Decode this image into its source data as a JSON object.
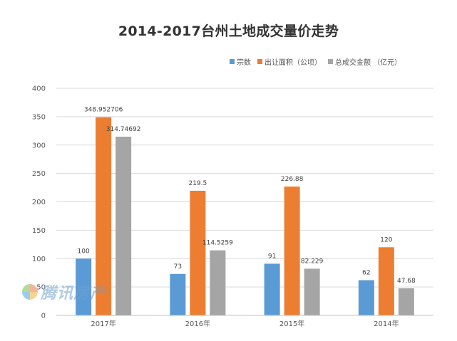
{
  "chart_data": {
    "type": "bar",
    "title": "2014-2017台州土地成交量价走势",
    "categories": [
      "2017年",
      "2016年",
      "2015年",
      "2014年"
    ],
    "series": [
      {
        "name": "宗数",
        "color": "#5b9bd5",
        "values": [
          100,
          73,
          91,
          62
        ],
        "labels": [
          "100",
          "73",
          "91",
          "62"
        ]
      },
      {
        "name": "出让面积（公顷）",
        "color": "#ed7d31",
        "values": [
          348.952706,
          219.5,
          226.88,
          120
        ],
        "labels": [
          "348.952706",
          "219.5",
          "226.88",
          "120"
        ]
      },
      {
        "name": "总成交金额 （亿元）",
        "color": "#a5a5a5",
        "values": [
          314.74692,
          114.5259,
          82.229,
          47.68
        ],
        "labels": [
          "314.74692",
          "114.5259",
          "82.229",
          "47.68"
        ]
      }
    ],
    "ylim": [
      0,
      400
    ],
    "yticks": [
      "0",
      "50",
      "100",
      "150",
      "200",
      "250",
      "300",
      "350",
      "400"
    ],
    "grid": true,
    "legend_position": "top-right",
    "xlabel": "",
    "ylabel": ""
  },
  "watermark": {
    "text": "腾讯房产",
    "icon": "tencent-house-logo-icon"
  }
}
